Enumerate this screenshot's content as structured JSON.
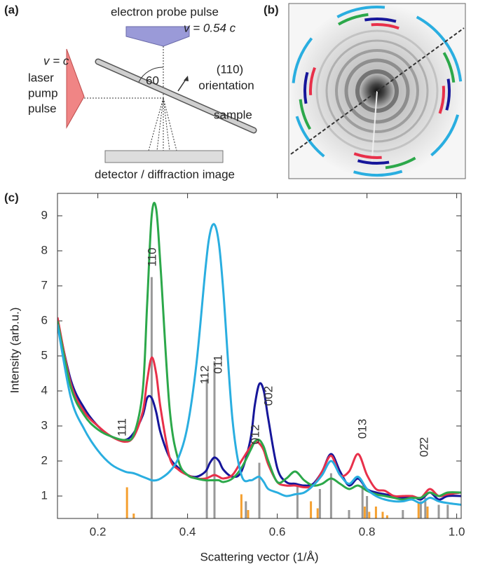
{
  "panels": {
    "a": "(a)",
    "b": "(b)",
    "c": "(c)"
  },
  "diagram": {
    "probe": "electron probe pulse",
    "probe_speed": "v = 0.54 c",
    "pump_speed": "v = c",
    "pump": [
      "laser",
      "pump",
      "pulse"
    ],
    "angle": "60",
    "orientation": [
      "(110)",
      "orientation"
    ],
    "sample": "sample",
    "detector": "detector / diffraction image"
  },
  "chart_data": {
    "type": "line",
    "x_label": "Scattering vector (1/Å)",
    "y_label": "Intensity (arb.u.)",
    "xlim": [
      0.11,
      1.01
    ],
    "ylim": [
      0.36,
      9.64
    ],
    "xticks": [
      0.2,
      0.4,
      0.6,
      0.8,
      {
        "value": 1.0,
        "label": "1.0"
      }
    ],
    "yticks": [
      1,
      2,
      3,
      4,
      5,
      6,
      7,
      8,
      9
    ],
    "x": [
      0.11,
      0.14,
      0.17,
      0.2,
      0.23,
      0.26,
      0.28,
      0.3,
      0.31,
      0.32,
      0.33,
      0.34,
      0.36,
      0.38,
      0.4,
      0.42,
      0.44,
      0.45,
      0.46,
      0.47,
      0.48,
      0.5,
      0.52,
      0.54,
      0.55,
      0.56,
      0.57,
      0.58,
      0.6,
      0.62,
      0.64,
      0.66,
      0.68,
      0.7,
      0.72,
      0.74,
      0.76,
      0.78,
      0.8,
      0.82,
      0.84,
      0.86,
      0.88,
      0.9,
      0.92,
      0.94,
      0.96,
      0.98,
      1.01
    ],
    "series": [
      {
        "color": "#16169a",
        "values": [
          6.0,
          4.3,
          3.5,
          3.0,
          2.7,
          2.6,
          2.8,
          3.3,
          3.8,
          3.8,
          3.4,
          2.8,
          2.1,
          1.8,
          1.6,
          1.55,
          1.7,
          1.95,
          2.1,
          2.0,
          1.75,
          1.55,
          1.7,
          2.6,
          3.6,
          4.2,
          4.0,
          3.2,
          1.8,
          1.4,
          1.35,
          1.3,
          1.35,
          1.7,
          2.2,
          1.7,
          1.3,
          1.5,
          1.2,
          1.1,
          1.05,
          1.0,
          0.95,
          1.0,
          0.9,
          1.1,
          0.9,
          1.0,
          1.0
        ]
      },
      {
        "color": "#e8304a",
        "values": [
          6.1,
          4.2,
          3.4,
          3.0,
          2.7,
          2.55,
          2.7,
          3.4,
          4.3,
          4.95,
          4.5,
          3.5,
          2.1,
          1.75,
          1.6,
          1.5,
          1.5,
          1.55,
          1.6,
          1.55,
          1.5,
          1.6,
          2.0,
          2.4,
          2.55,
          2.5,
          2.3,
          1.9,
          1.4,
          1.3,
          1.3,
          1.25,
          1.3,
          1.7,
          2.15,
          1.6,
          1.7,
          2.2,
          1.6,
          1.2,
          1.15,
          1.0,
          1.0,
          1.0,
          0.95,
          1.2,
          1.0,
          1.05,
          1.1
        ]
      },
      {
        "color": "#2ca84a",
        "values": [
          6.0,
          4.1,
          3.3,
          2.9,
          2.7,
          2.6,
          2.75,
          4.0,
          6.5,
          9.0,
          9.2,
          7.5,
          3.5,
          2.0,
          1.6,
          1.5,
          1.45,
          1.45,
          1.45,
          1.45,
          1.4,
          1.5,
          1.8,
          2.3,
          2.55,
          2.6,
          2.4,
          2.0,
          1.4,
          1.5,
          1.7,
          1.45,
          1.3,
          1.35,
          1.5,
          1.35,
          1.2,
          1.3,
          1.15,
          1.05,
          1.0,
          0.95,
          0.9,
          0.95,
          0.95,
          1.1,
          1.0,
          1.1,
          1.1
        ]
      },
      {
        "color": "#2aaee0",
        "values": [
          5.9,
          3.8,
          2.9,
          2.3,
          1.9,
          1.7,
          1.65,
          1.55,
          1.5,
          1.45,
          1.45,
          1.5,
          1.7,
          2.1,
          3.0,
          4.8,
          7.5,
          8.5,
          8.75,
          8.2,
          6.8,
          3.2,
          1.6,
          1.45,
          1.5,
          1.55,
          1.4,
          1.2,
          1.1,
          1.0,
          1.05,
          1.1,
          1.3,
          1.6,
          2.0,
          1.6,
          1.35,
          1.55,
          1.2,
          1.0,
          0.9,
          0.85,
          0.85,
          0.9,
          0.8,
          0.95,
          0.85,
          0.8,
          0.75
        ]
      }
    ],
    "reference_peaks": [
      {
        "color": "#999999",
        "x": [
          0.32,
          0.443,
          0.46,
          0.53,
          0.56,
          0.645,
          0.695,
          0.72,
          0.76,
          0.79,
          0.8,
          0.88,
          0.92,
          0.93,
          0.96,
          0.98
        ],
        "values": [
          7.25,
          4.35,
          4.85,
          0.85,
          1.95,
          1.3,
          1.2,
          1.65,
          0.6,
          1.3,
          1.0,
          0.6,
          0.85,
          0.95,
          0.75,
          0.75
        ]
      },
      {
        "color": "#f5a030",
        "x": [
          0.265,
          0.28,
          0.52,
          0.535,
          0.675,
          0.69,
          0.795,
          0.805,
          0.82,
          0.835,
          0.845,
          0.915,
          0.935
        ],
        "values": [
          1.25,
          0.5,
          1.05,
          0.6,
          0.85,
          0.65,
          0.7,
          0.55,
          0.7,
          0.55,
          0.45,
          0.8,
          0.7
        ]
      }
    ],
    "annotations": [
      "111",
      "110",
      "112",
      "011",
      "012",
      "002",
      "013",
      "02̄2"
    ]
  }
}
